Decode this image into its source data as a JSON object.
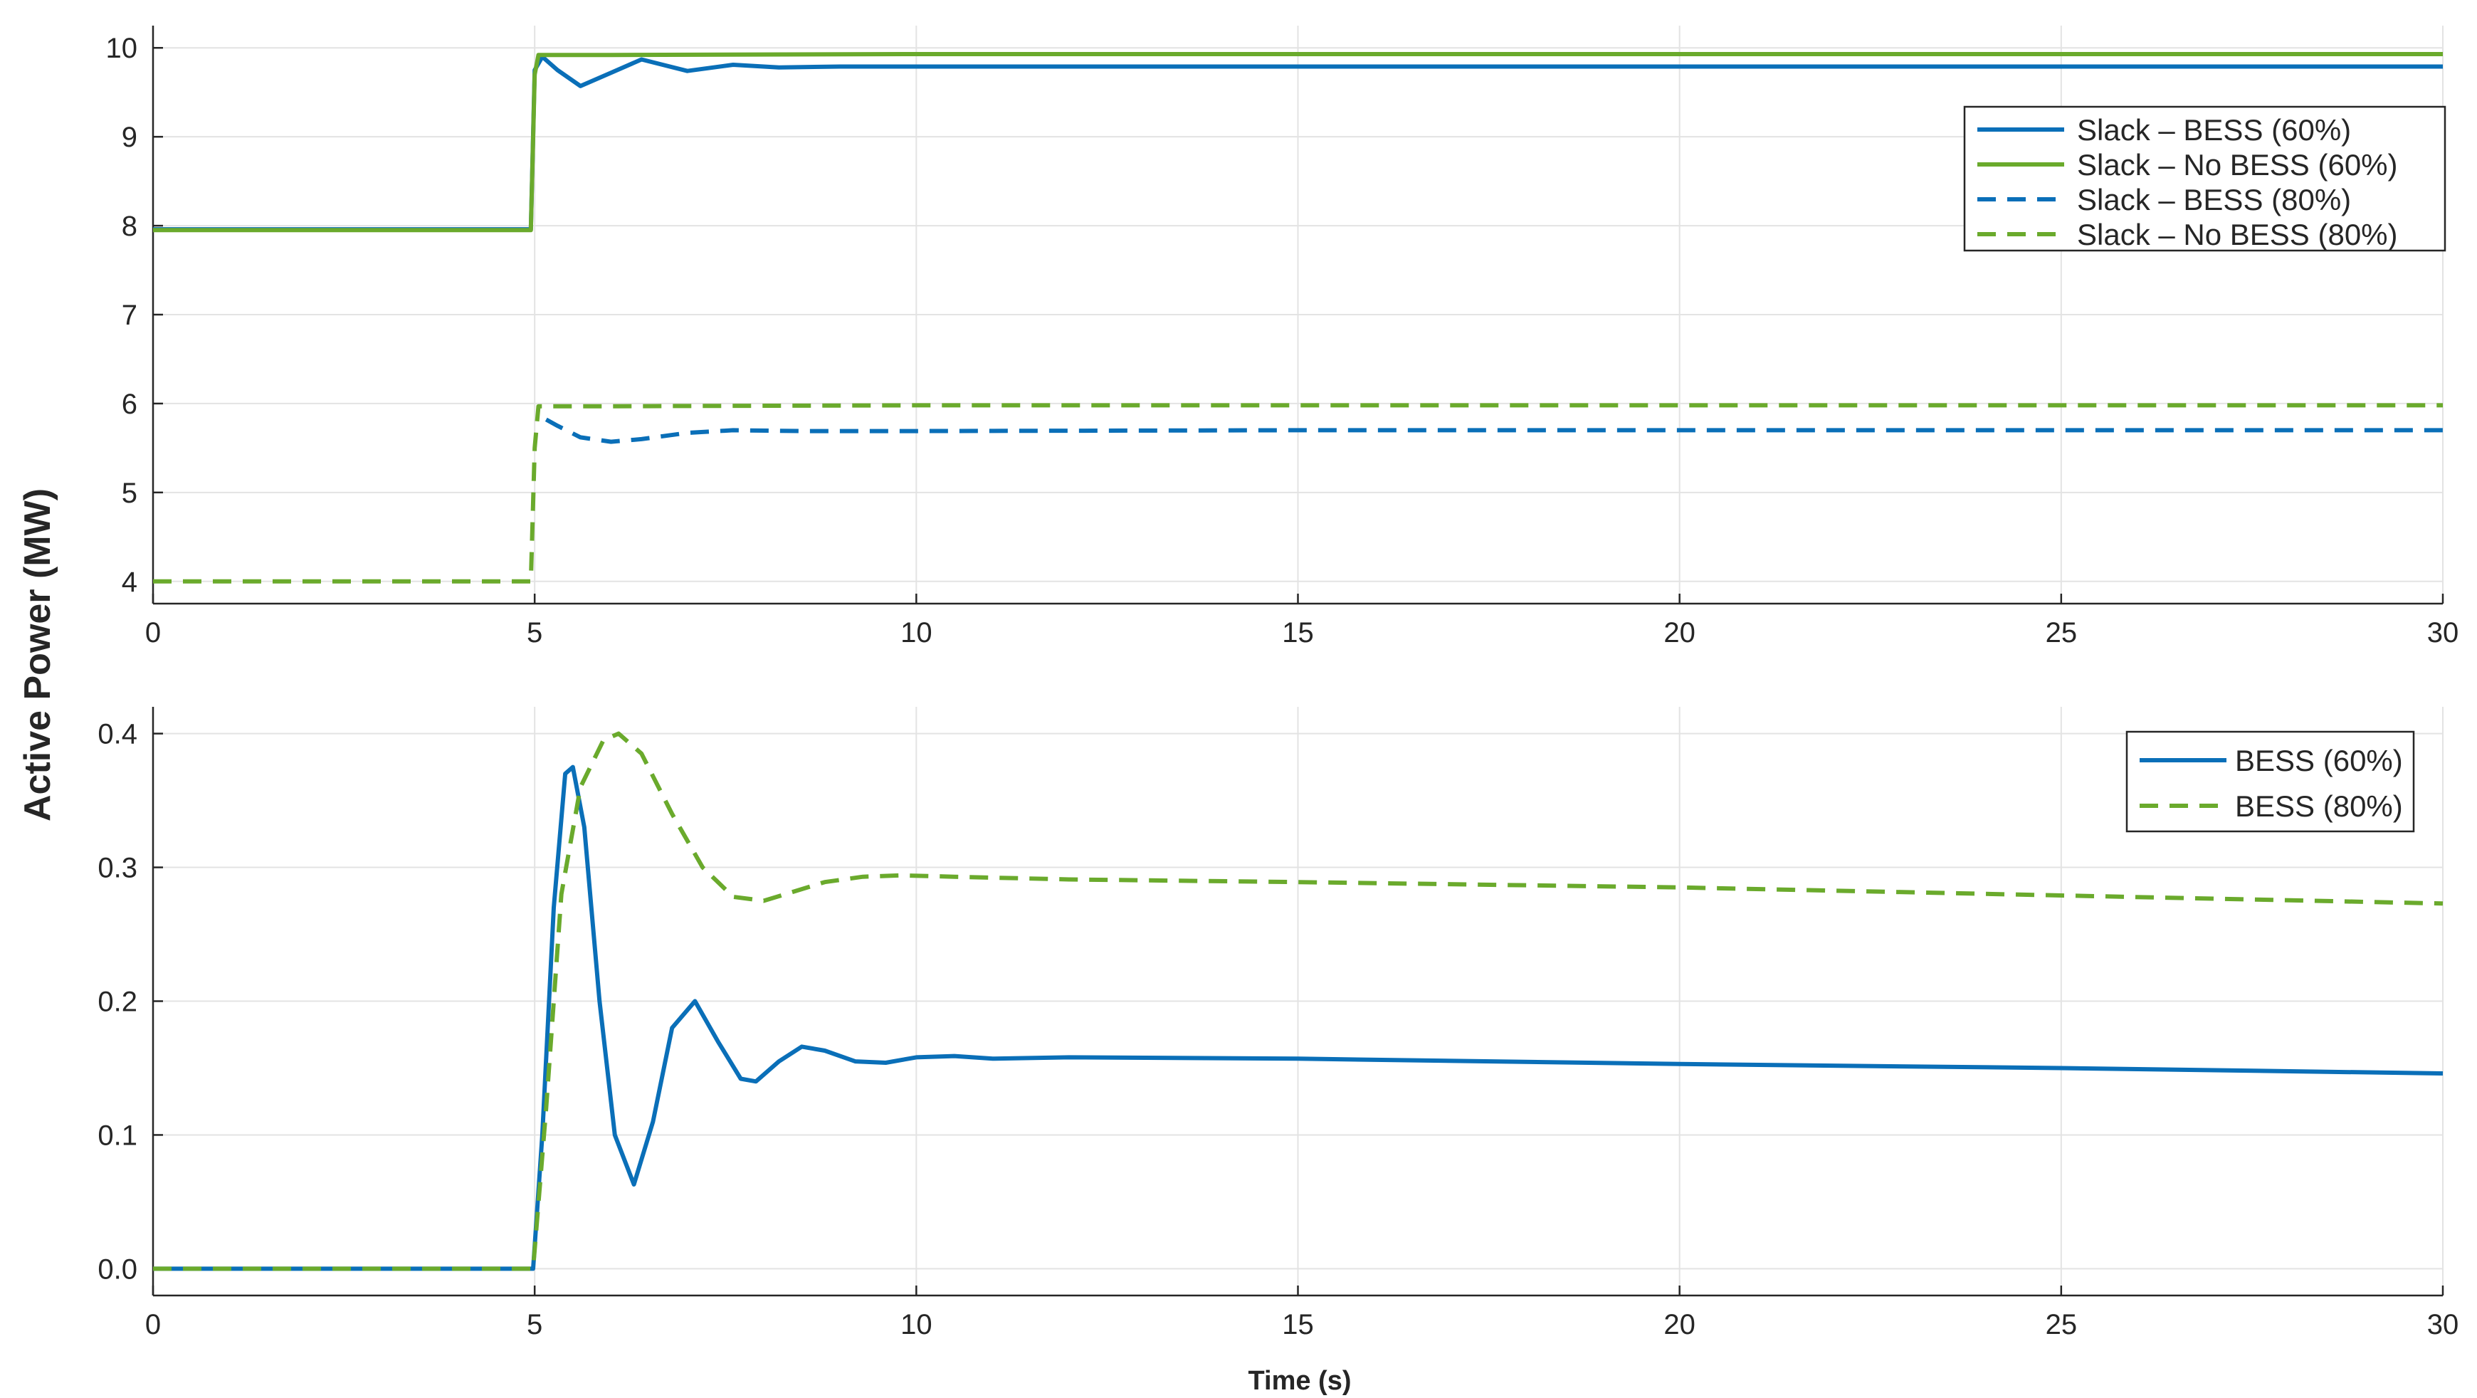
{
  "colors": {
    "blue": "#0a6fb8",
    "green": "#6aaa2c",
    "grid": "#e3e3e3",
    "axis": "#262626"
  },
  "figure": {
    "ylabel": "Active Power (MW)",
    "xlabel": "Time (s)"
  },
  "chart_data": [
    {
      "type": "line",
      "panel": "top",
      "xlim": [
        0,
        30
      ],
      "ylim": [
        3.75,
        10.25
      ],
      "xticks": [
        0,
        5,
        10,
        15,
        20,
        25,
        30
      ],
      "yticks": [
        4,
        5,
        6,
        7,
        8,
        9,
        10
      ],
      "grid": true,
      "legend_position": "top-right",
      "series": [
        {
          "name": "Slack – BESS (60%)",
          "color": "blue",
          "dash": "solid",
          "x": [
            0,
            4.95,
            5.0,
            5.1,
            5.3,
            5.6,
            6.0,
            6.4,
            7.0,
            7.6,
            8.2,
            9.0,
            10.0,
            15.0,
            20.0,
            25.0,
            30.0
          ],
          "y": [
            7.96,
            7.96,
            9.75,
            9.9,
            9.75,
            9.57,
            9.72,
            9.87,
            9.74,
            9.81,
            9.78,
            9.79,
            9.79,
            9.79,
            9.79,
            9.79,
            9.79
          ]
        },
        {
          "name": "Slack – No BESS (60%)",
          "color": "green",
          "dash": "solid",
          "x": [
            0,
            4.95,
            5.0,
            5.05,
            6.0,
            10.0,
            20.0,
            30.0
          ],
          "y": [
            7.95,
            7.95,
            9.7,
            9.92,
            9.92,
            9.93,
            9.93,
            9.93
          ]
        },
        {
          "name": "Slack – BESS (80%)",
          "color": "blue",
          "dash": "dashed",
          "x": [
            5.15,
            5.3,
            5.6,
            6.0,
            6.4,
            7.0,
            7.6,
            8.5,
            10.0,
            15.0,
            20.0,
            25.0,
            30.0
          ],
          "y": [
            5.82,
            5.75,
            5.62,
            5.57,
            5.6,
            5.67,
            5.7,
            5.69,
            5.69,
            5.7,
            5.7,
            5.7,
            5.7
          ]
        },
        {
          "name": "Slack – No BESS (80%)",
          "color": "green",
          "dash": "dashed",
          "x": [
            0,
            4.95,
            5.0,
            5.05,
            6.0,
            10.0,
            20.0,
            30.0
          ],
          "y": [
            4.0,
            4.0,
            5.5,
            5.97,
            5.97,
            5.98,
            5.98,
            5.98
          ]
        }
      ]
    },
    {
      "type": "line",
      "panel": "bottom",
      "xlim": [
        0,
        30
      ],
      "ylim": [
        -0.02,
        0.42
      ],
      "xticks": [
        0,
        5,
        10,
        15,
        20,
        25,
        30
      ],
      "yticks": [
        0,
        0.1,
        0.2,
        0.3,
        0.4
      ],
      "grid": true,
      "legend_position": "top-right",
      "series": [
        {
          "name": "BESS (60%)",
          "color": "blue",
          "dash": "solid",
          "x": [
            0,
            4.98,
            5.1,
            5.25,
            5.4,
            5.5,
            5.65,
            5.85,
            6.05,
            6.3,
            6.55,
            6.8,
            7.1,
            7.4,
            7.7,
            7.9,
            8.2,
            8.5,
            8.8,
            9.2,
            9.6,
            10.0,
            10.5,
            11.0,
            12.0,
            15.0,
            20.0,
            25.0,
            30.0
          ],
          "y": [
            0,
            0,
            0.1,
            0.27,
            0.37,
            0.375,
            0.33,
            0.2,
            0.1,
            0.063,
            0.11,
            0.18,
            0.2,
            0.17,
            0.142,
            0.14,
            0.155,
            0.166,
            0.163,
            0.155,
            0.154,
            0.158,
            0.159,
            0.157,
            0.158,
            0.157,
            0.153,
            0.15,
            0.146
          ]
        },
        {
          "name": "BESS (80%)",
          "color": "green",
          "dash": "dashed",
          "x": [
            0,
            4.98,
            5.15,
            5.35,
            5.6,
            5.9,
            6.1,
            6.4,
            6.8,
            7.2,
            7.6,
            8.0,
            8.4,
            8.8,
            9.3,
            9.8,
            10.5,
            12.0,
            15.0,
            20.0,
            25.0,
            30.0
          ],
          "y": [
            0,
            0,
            0.12,
            0.28,
            0.36,
            0.395,
            0.4,
            0.385,
            0.34,
            0.3,
            0.278,
            0.275,
            0.282,
            0.289,
            0.293,
            0.294,
            0.293,
            0.291,
            0.289,
            0.285,
            0.279,
            0.273
          ]
        }
      ]
    }
  ]
}
